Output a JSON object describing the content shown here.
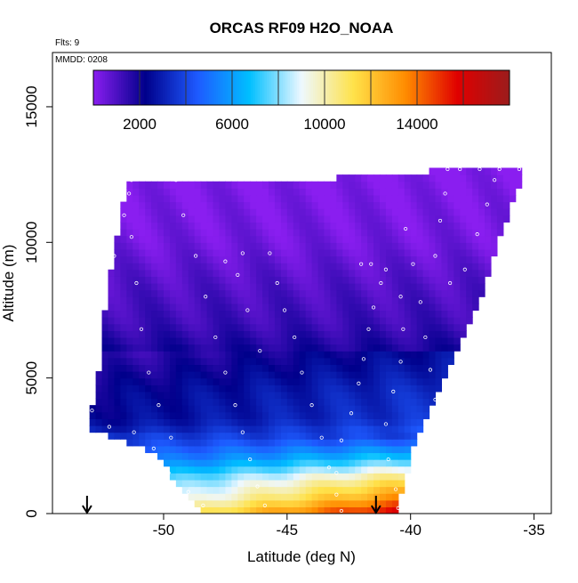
{
  "chart_data": {
    "type": "heatmap",
    "title": "ORCAS RF09 H2O_NOAA",
    "annotations": {
      "flights": "Flts: 9",
      "date": "MMDD: 0208"
    },
    "xlabel": "Latitude (deg N)",
    "ylabel": "Altitude (m)",
    "xlim": [
      -54.5,
      -34.3
    ],
    "ylim": [
      0,
      17000
    ],
    "x_ticks": [
      -50,
      -45,
      -40,
      -35
    ],
    "x_tick_labels": [
      "-50",
      "-45",
      "-40",
      "-35"
    ],
    "y_ticks": [
      0,
      5000,
      10000,
      15000
    ],
    "y_tick_labels": [
      "0",
      "5000",
      "10000",
      "15000"
    ],
    "colorbar": {
      "range": [
        0,
        18000
      ],
      "ticks": [
        2000,
        6000,
        10000,
        14000
      ],
      "tick_labels": [
        "2000",
        "6000",
        "10000",
        "14000"
      ],
      "segment_boundaries": [
        2000,
        4000,
        6000,
        8000,
        10000,
        12000,
        14000,
        16000
      ],
      "colors": [
        "#8a1ef0",
        "#00008b",
        "#1e5aff",
        "#00bfff",
        "#eef8ff",
        "#ffe24a",
        "#ff8c00",
        "#e00000",
        "#9b1c1c"
      ]
    },
    "arrows_latitude": [
      -53.1,
      -41.4
    ],
    "domain_boundary": {
      "left_edge": [
        [
          -48.4,
          0
        ],
        [
          -50.4,
          2300
        ],
        [
          -53.0,
          3100
        ],
        [
          -52.6,
          5000
        ],
        [
          -52.2,
          8500
        ],
        [
          -51.4,
          12300
        ]
      ],
      "right_edge": [
        [
          -40.7,
          0
        ],
        [
          -40.0,
          2400
        ],
        [
          -39.0,
          4500
        ],
        [
          -37.3,
          7800
        ],
        [
          -36.4,
          10500
        ],
        [
          -35.5,
          12700
        ]
      ],
      "top_edge": [
        [
          -51.4,
          12300
        ],
        [
          -44.0,
          12300
        ],
        [
          -38.8,
          12650
        ],
        [
          -35.5,
          12700
        ]
      ]
    },
    "field_profile": [
      {
        "altitude": 0,
        "value": 14000
      },
      {
        "altitude": 600,
        "value": 11500
      },
      {
        "altitude": 1300,
        "value": 9500
      },
      {
        "altitude": 2000,
        "value": 6500
      },
      {
        "altitude": 2800,
        "value": 4000
      },
      {
        "altitude": 3500,
        "value": 3000
      },
      {
        "altitude": 4500,
        "value": 2800
      },
      {
        "altitude": 5800,
        "value": 2000
      },
      {
        "altitude": 7000,
        "value": 1300
      },
      {
        "altitude": 8500,
        "value": 900
      },
      {
        "altitude": 10000,
        "value": 400
      },
      {
        "altitude": 12700,
        "value": 100
      }
    ],
    "flight_track": [
      [
        -51.3,
        12300
      ],
      [
        -51.6,
        11000
      ],
      [
        -52.0,
        9500
      ],
      [
        -52.4,
        8000
      ],
      [
        -52.8,
        6500
      ],
      [
        -53.0,
        5000
      ],
      [
        -52.9,
        3800
      ],
      [
        -52.2,
        3200
      ],
      [
        -51.2,
        3000
      ],
      [
        -50.4,
        2400
      ],
      [
        -49.8,
        1500
      ],
      [
        -49.0,
        800
      ],
      [
        -48.4,
        300
      ],
      [
        -49.7,
        2800
      ],
      [
        -50.2,
        4000
      ],
      [
        -50.6,
        5200
      ],
      [
        -50.9,
        6800
      ],
      [
        -51.1,
        8500
      ],
      [
        -51.3,
        10200
      ],
      [
        -51.4,
        11800
      ],
      [
        -49.5,
        12300
      ],
      [
        -49.2,
        11000
      ],
      [
        -48.7,
        9500
      ],
      [
        -48.3,
        8000
      ],
      [
        -47.9,
        6500
      ],
      [
        -47.5,
        5200
      ],
      [
        -47.1,
        4000
      ],
      [
        -46.8,
        3000
      ],
      [
        -46.5,
        2000
      ],
      [
        -46.2,
        1000
      ],
      [
        -45.9,
        300
      ],
      [
        -46.1,
        6000
      ],
      [
        -46.6,
        7500
      ],
      [
        -47.0,
        8800
      ],
      [
        -47.5,
        9300
      ],
      [
        -46.8,
        9600
      ],
      [
        -45.7,
        9600
      ],
      [
        -45.4,
        8500
      ],
      [
        -45.1,
        7500
      ],
      [
        -44.7,
        6500
      ],
      [
        -44.4,
        5200
      ],
      [
        -44.0,
        4000
      ],
      [
        -43.6,
        2800
      ],
      [
        -43.3,
        1700
      ],
      [
        -43.0,
        700
      ],
      [
        -42.8,
        100
      ],
      [
        -43.0,
        1500
      ],
      [
        -42.8,
        2700
      ],
      [
        -42.4,
        3700
      ],
      [
        -42.1,
        4800
      ],
      [
        -41.9,
        5700
      ],
      [
        -41.7,
        6800
      ],
      [
        -41.5,
        7600
      ],
      [
        -41.2,
        8500
      ],
      [
        -41.0,
        9000
      ],
      [
        -41.6,
        9200
      ],
      [
        -42.0,
        9200
      ],
      [
        -40.4,
        8000
      ],
      [
        -40.3,
        6800
      ],
      [
        -40.4,
        5600
      ],
      [
        -40.7,
        4500
      ],
      [
        -41.0,
        3300
      ],
      [
        -40.9,
        2000
      ],
      [
        -40.6,
        900
      ],
      [
        -40.5,
        200
      ],
      [
        -40.2,
        10500
      ],
      [
        -39.9,
        9200
      ],
      [
        -39.6,
        7800
      ],
      [
        -39.4,
        6500
      ],
      [
        -39.2,
        5300
      ],
      [
        -39.0,
        4200
      ],
      [
        -39.1,
        3000
      ],
      [
        -39.3,
        1800
      ],
      [
        -39.5,
        700
      ],
      [
        -38.5,
        12700
      ],
      [
        -38.0,
        12700
      ],
      [
        -37.2,
        12700
      ],
      [
        -36.4,
        12700
      ],
      [
        -35.6,
        12700
      ],
      [
        -38.6,
        11800
      ],
      [
        -38.8,
        10800
      ],
      [
        -39.0,
        9500
      ],
      [
        -38.4,
        8500
      ],
      [
        -37.8,
        9000
      ],
      [
        -37.3,
        10300
      ],
      [
        -36.9,
        11400
      ],
      [
        -36.6,
        12300
      ]
    ]
  }
}
